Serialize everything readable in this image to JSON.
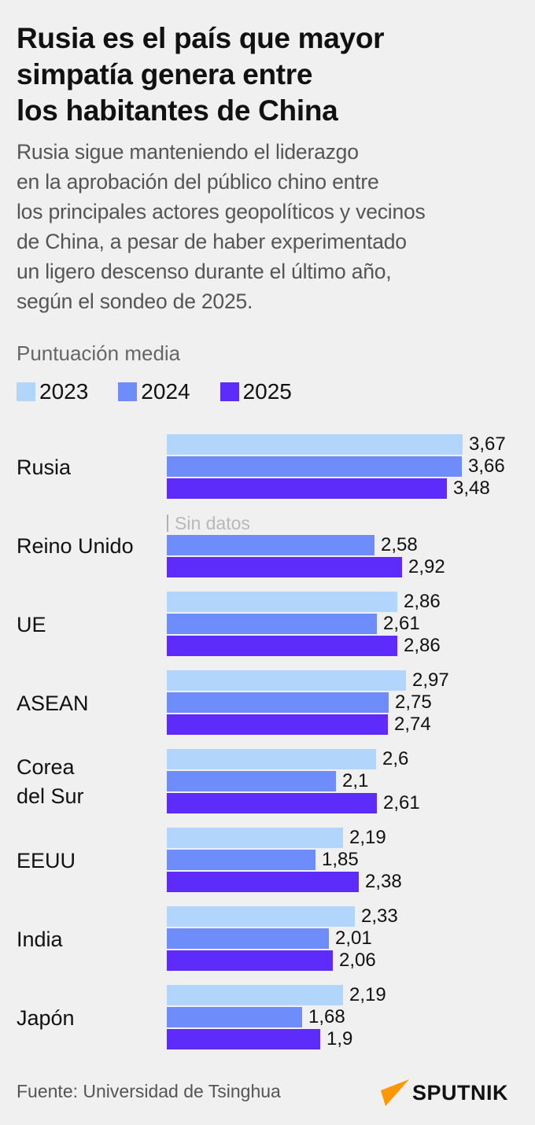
{
  "header": {
    "title": "Rusia es el país que mayor simpatía genera entre los habitantes de China",
    "title_lines": [
      "Rusia es el país que mayor",
      "simpatía genera entre",
      "los habitantes de China"
    ],
    "subtitle_lines": [
      "Rusia sigue manteniendo el liderazgo",
      "en la aprobación del público chino entre",
      "los principales actores geopolíticos y vecinos",
      "de China, a pesar de haber experimentado",
      "un ligero descenso durante el último año,",
      "según el sondeo de 2025."
    ]
  },
  "measure_label": "Puntuación media",
  "legend": [
    {
      "label": "2023",
      "color": "#b2d6fb"
    },
    {
      "label": "2024",
      "color": "#6e8cfa"
    },
    {
      "label": "2025",
      "color": "#5e2cfa"
    }
  ],
  "no_data_label": "Sin datos",
  "footer": {
    "source": "Fuente: Universidad de Tsinghua",
    "logo_text": "SPUTNIK",
    "logo_color": "#ff9800"
  },
  "chart_data": {
    "type": "bar",
    "orientation": "horizontal",
    "title": "Rusia es el país que mayor simpatía genera entre los habitantes de China",
    "xlabel": "Puntuación media",
    "ylabel": "",
    "categories": [
      "Rusia",
      "Reino Unido",
      "UE",
      "ASEAN",
      "Corea del Sur",
      "EEUU",
      "India",
      "Japón"
    ],
    "category_lines": [
      [
        "Rusia"
      ],
      [
        "Reino Unido"
      ],
      [
        "UE"
      ],
      [
        "ASEAN"
      ],
      [
        "Corea",
        "del Sur"
      ],
      [
        "EEUU"
      ],
      [
        "India"
      ],
      [
        "Japón"
      ]
    ],
    "series": [
      {
        "name": "2023",
        "color": "#b2d6fb",
        "values": [
          3.67,
          null,
          2.86,
          2.97,
          2.6,
          2.19,
          2.33,
          2.19
        ],
        "labels": [
          "3,67",
          "Sin datos",
          "2,86",
          "2,97",
          "2,6",
          "2,19",
          "2,33",
          "2,19"
        ]
      },
      {
        "name": "2024",
        "color": "#6e8cfa",
        "values": [
          3.66,
          2.58,
          2.61,
          2.75,
          2.1,
          1.85,
          2.01,
          1.68
        ],
        "labels": [
          "3,66",
          "2,58",
          "2,61",
          "2,75",
          "2,1",
          "1,85",
          "2,01",
          "1,68"
        ]
      },
      {
        "name": "2025",
        "color": "#5e2cfa",
        "values": [
          3.48,
          2.92,
          2.86,
          2.74,
          2.61,
          2.38,
          2.06,
          1.9
        ],
        "labels": [
          "3,48",
          "2,92",
          "2,86",
          "2,74",
          "2,61",
          "2,38",
          "2,06",
          "1,9"
        ]
      }
    ],
    "xlim": [
      0,
      4
    ],
    "grid": false,
    "legend_position": "top-left"
  }
}
